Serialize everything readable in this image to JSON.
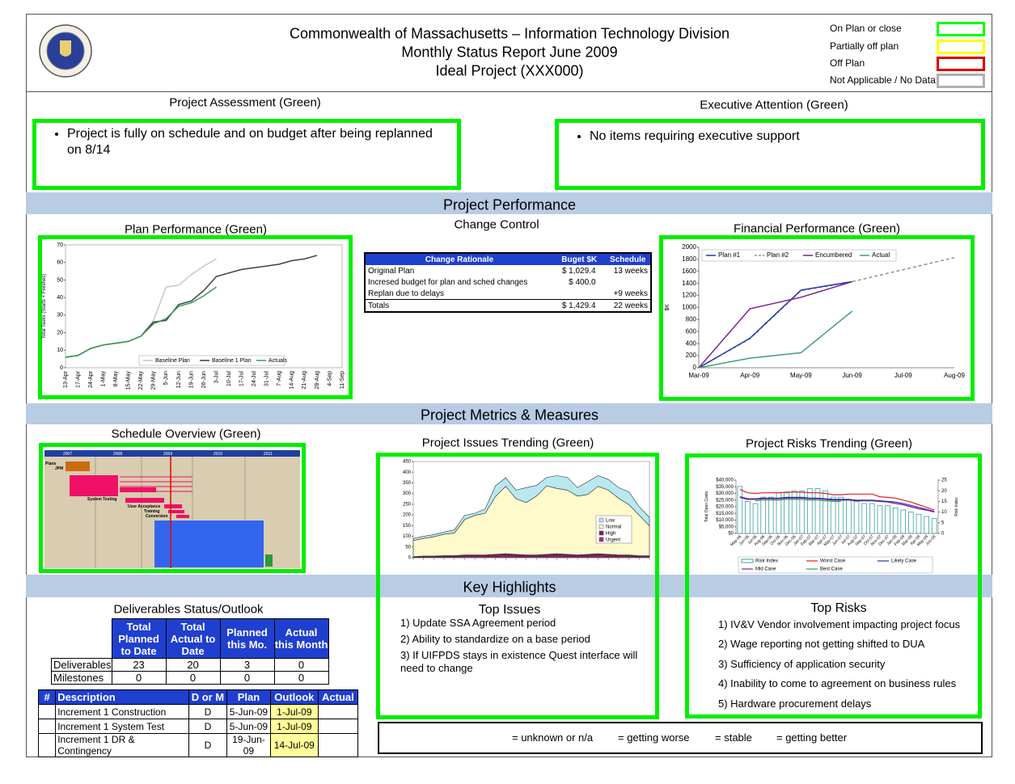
{
  "header": {
    "title": [
      "Commonwealth of Massachusetts – Information Technology Division",
      "Monthly Status Report June 2009",
      "Ideal Project (XXX000)"
    ],
    "status_legend": [
      {
        "label": "On Plan or close",
        "color": "#00ff00"
      },
      {
        "label": "Partially off plan",
        "color": "#ffff00"
      },
      {
        "label": "Off Plan",
        "color": "#dd0000"
      },
      {
        "label": "Not Applicable / No Data",
        "color": "#b0b0b0"
      }
    ]
  },
  "assessment": {
    "heading": "Project Assessment (Green)",
    "items": [
      "Project is fully on schedule and on budget after being replanned on 8/14"
    ]
  },
  "executive": {
    "heading": "Executive Attention (Green)",
    "items": [
      "No items requiring executive support"
    ]
  },
  "bands": [
    "Project Performance",
    "Project Metrics & Measures",
    "Key Highlights"
  ],
  "plan_performance": {
    "type": "line",
    "title": "Plan Performance (Green)",
    "y_label": "Total Tasks (Starts + Finishes)",
    "categories": [
      "13-Apr",
      "17-Apr",
      "24-Apr",
      "1-May",
      "8-May",
      "15-May",
      "22-May",
      "29-May",
      "5-Jun",
      "12-Jun",
      "19-Jun",
      "26-Jun",
      "3-Jul",
      "10-Jul",
      "17-Jul",
      "24-Jul",
      "31-Jul",
      "7-Aug",
      "14-Aug",
      "21-Aug",
      "28-Aug",
      "4-Sep",
      "11-Sep"
    ],
    "ylim": [
      0,
      70
    ],
    "yticks": [
      0,
      10,
      20,
      30,
      40,
      50,
      60,
      70
    ],
    "series": [
      {
        "name": "Baseline Plan",
        "color": "#c8c8c8",
        "values": [
          6,
          7,
          11,
          13,
          14,
          15,
          18,
          27,
          46,
          47,
          53,
          58,
          62,
          null,
          null,
          null,
          null,
          null,
          null,
          null,
          null,
          null,
          null
        ]
      },
      {
        "name": "Baseline 1 Plan",
        "color": "#404040",
        "values": [
          6,
          7,
          11,
          13,
          14,
          15,
          18,
          26,
          27,
          36,
          38,
          44,
          52,
          54,
          56,
          57,
          58,
          59,
          61,
          62,
          64,
          null,
          null
        ]
      },
      {
        "name": "Actuals",
        "color": "#3a9a5a",
        "values": [
          6,
          7,
          11,
          13,
          14,
          15,
          18,
          25,
          28,
          35,
          37,
          41,
          46,
          null,
          null,
          null,
          null,
          null,
          null,
          null,
          null,
          null,
          null
        ]
      }
    ]
  },
  "change_control": {
    "title": "Change Control",
    "columns": [
      "Change Rationale",
      "Buget $K",
      "Schedule"
    ],
    "rows": [
      {
        "rationale": "Original Plan",
        "budget": "$ 1,029.4",
        "schedule": "13 weeks"
      },
      {
        "rationale": "Incresed budget for plan and sched changes",
        "budget": "$ 400.0"
      },
      {
        "rationale": "Replan due to delays",
        "schedule": "+9 weeks"
      }
    ],
    "total": {
      "rationale": "Totals",
      "budget": "$ 1,429.4",
      "schedule": "22 weeks"
    }
  },
  "financial_performance": {
    "type": "line",
    "title": "Financial Performance (Green)",
    "y_label": "$K",
    "categories": [
      "Mar-09",
      "Apr-09",
      "May-09",
      "Jun-09",
      "Jul-09",
      "Aug-09"
    ],
    "ylim": [
      0,
      2000
    ],
    "yticks": [
      0,
      200,
      400,
      600,
      800,
      1000,
      1200,
      1400,
      1600,
      1800,
      2000
    ],
    "series": [
      {
        "name": "Plan #1",
        "color": "#2233bb",
        "values": [
          0,
          490,
          1290,
          1430,
          null,
          null
        ]
      },
      {
        "name": "Plan #2",
        "color": "#909090",
        "dashed": true,
        "values": [
          0,
          480,
          1280,
          1430,
          1630,
          1830
        ]
      },
      {
        "name": "Encumbered",
        "color": "#7a2090",
        "values": [
          0,
          980,
          1170,
          1430,
          null,
          null
        ]
      },
      {
        "name": "Actual",
        "color": "#40a070",
        "values": [
          0,
          160,
          250,
          940,
          null,
          null
        ]
      }
    ]
  },
  "schedule_overview": {
    "title": "Schedule Overview (Green)",
    "years": [
      "2007",
      "2008",
      "2009",
      "2010",
      "2011"
    ],
    "tasks": [
      "Plans",
      "JPM",
      "System Testing",
      "User Acceptance",
      "Training",
      "Conversion"
    ]
  },
  "issues_trending": {
    "type": "area",
    "title": "Project Issues Trending (Green)",
    "ylim": [
      0,
      450
    ],
    "yticks": [
      0,
      50,
      100,
      150,
      200,
      250,
      300,
      350,
      400,
      450
    ],
    "series": [
      {
        "name": "Low",
        "color": "#b8e8f0",
        "values": [
          10,
          10,
          10,
          10,
          15,
          20,
          10,
          20,
          50,
          40,
          40,
          70,
          50,
          40,
          60,
          60,
          40,
          60,
          50,
          50,
          50,
          60,
          40,
          40
        ]
      },
      {
        "name": "Normal",
        "color": "#fffacc",
        "values": [
          75,
          82,
          90,
          100,
          105,
          165,
          185,
          195,
          270,
          315,
          260,
          245,
          275,
          320,
          305,
          300,
          275,
          280,
          315,
          300,
          265,
          235,
          190,
          140
        ]
      },
      {
        "name": "High",
        "color": "#7a2060",
        "values": [
          3,
          5,
          5,
          6,
          6,
          8,
          8,
          8,
          10,
          12,
          10,
          8,
          8,
          10,
          12,
          10,
          8,
          10,
          12,
          10,
          8,
          8,
          5,
          5
        ]
      },
      {
        "name": "Urgent",
        "color": "#b03070",
        "values": [
          2,
          3,
          3,
          4,
          4,
          5,
          5,
          5,
          6,
          7,
          6,
          5,
          5,
          6,
          7,
          6,
          5,
          6,
          7,
          6,
          5,
          5,
          4,
          4
        ]
      }
    ]
  },
  "risks_trending": {
    "type": "bar-line",
    "title": "Project Risks Trending (Green)",
    "y_label": "Total Open Costs",
    "y2_label": "Risk Index",
    "categories": [
      "May-06",
      "Jun-06",
      "Jul-06",
      "Aug-06",
      "Sep-06",
      "Oct-06",
      "Nov-06",
      "Dec-06",
      "Jan-07",
      "Feb-07",
      "Mar-07",
      "Apr-07",
      "May-07",
      "Jun-07",
      "Jul-07",
      "Aug-07",
      "Sep-07",
      "Oct-07",
      "Nov-07",
      "Dec-07",
      "Jan-08",
      "Feb-08",
      "Mar-08",
      "Apr-08",
      "May-08",
      "Jun-08"
    ],
    "ylim": [
      0,
      40000
    ],
    "yticks": [
      {
        "value": 0,
        "label": "$0"
      },
      {
        "value": 5000,
        "label": "$5,000"
      },
      {
        "value": 10000,
        "label": "$10,000"
      },
      {
        "value": 15000,
        "label": "$15,000"
      },
      {
        "value": 20000,
        "label": "$20,000"
      },
      {
        "value": 25000,
        "label": "$25,000"
      },
      {
        "value": 30000,
        "label": "$30,000"
      },
      {
        "value": 35000,
        "label": "$35,000"
      },
      {
        "value": 40000,
        "label": "$40,000"
      }
    ],
    "y2lim": [
      0,
      25
    ],
    "y2ticks": [
      0,
      5,
      10,
      15,
      20,
      25
    ],
    "series": [
      {
        "name": "Risk Index",
        "color": "#3aa0a0",
        "kind": "bar",
        "axis": "y2",
        "values": [
          22,
          15,
          14,
          17,
          17,
          19,
          19,
          20,
          20,
          21,
          21,
          20,
          17,
          17,
          16,
          15,
          14,
          14,
          13,
          13,
          12,
          11,
          10,
          9,
          8,
          7
        ]
      },
      {
        "name": "Worst Case",
        "color": "#e02020",
        "values": [
          33000,
          30500,
          30000,
          30500,
          30500,
          30500,
          31000,
          31000,
          31000,
          30500,
          30500,
          30000,
          29000,
          29000,
          29500,
          29500,
          29500,
          29500,
          27500,
          27000,
          26500,
          25000,
          23500,
          21500,
          19500,
          17500
        ]
      },
      {
        "name": "Likely Case",
        "color": "#2030c0",
        "values": [
          27500,
          26000,
          26000,
          26500,
          26500,
          26500,
          27000,
          27000,
          27000,
          26500,
          26500,
          26000,
          25500,
          25500,
          25500,
          25000,
          25000,
          25000,
          24500,
          24000,
          23500,
          22500,
          21000,
          19500,
          18000,
          16500
        ]
      },
      {
        "name": "Mid Case",
        "color": "#7a2080",
        "values": [
          27000,
          25500,
          25500,
          26000,
          26000,
          26000,
          26500,
          26500,
          26500,
          26000,
          26000,
          25500,
          25000,
          25000,
          25000,
          24500,
          24500,
          24500,
          24000,
          23500,
          22500,
          21500,
          20000,
          18500,
          17500,
          16000
        ]
      },
      {
        "name": "Best Case",
        "color": "#30a060",
        "values": [
          null,
          null,
          24500,
          25000,
          25000,
          25000,
          25500,
          25500,
          25500,
          25000,
          25000,
          24500,
          24000,
          24000,
          null,
          null,
          null,
          null,
          null,
          null,
          null,
          null,
          null,
          null,
          null,
          null
        ]
      }
    ]
  },
  "deliverables": {
    "title": "Deliverables Status/Outlook",
    "columns": [
      "Total Planned to Date",
      "Total Actual to Date",
      "Planned this Mo.",
      "Actual this Month"
    ],
    "rows": [
      {
        "label": "Deliverables",
        "values": [
          23,
          20,
          3,
          0
        ]
      },
      {
        "label": "Milestones",
        "values": [
          0,
          0,
          0,
          0
        ]
      }
    ]
  },
  "increments": {
    "columns": [
      "#",
      "Description",
      "D or M",
      "Plan",
      "Outlook",
      "Actual"
    ],
    "rows": [
      [
        "Increment 1 Construction",
        "D",
        "5-Jun-09",
        "1-Jul-09"
      ],
      [
        "Increment 1 System Test",
        "D",
        "5-Jun-09",
        "1-Jul-09"
      ],
      [
        "Increment 1 DR & Contingency",
        "D",
        "19-Jun-09",
        "14-Jul-09"
      ]
    ]
  },
  "top_issues": {
    "title": "Top Issues",
    "items": [
      "1) Update SSA Agreement period",
      "2) Ability to standardize on a base period",
      "3) If UIFPDS stays in existence Quest interface will need to change"
    ]
  },
  "top_risks": {
    "title": "Top Risks",
    "items": [
      "1) IV&V Vendor involvement impacting project focus",
      "2) Wage reporting not getting shifted to DUA",
      "3) Sufficiency of application security",
      "4) Inability to come to agreement on business rules",
      "5) Hardware procurement delays"
    ]
  },
  "trend_legend": [
    {
      "label": "= unknown or n/a",
      "color": "#808080"
    },
    {
      "label": "= getting worse",
      "color": "#ee0000"
    },
    {
      "label": "= stable",
      "color": "#7a1a8a"
    },
    {
      "label": "= getting better",
      "color": "#22cc22"
    }
  ]
}
